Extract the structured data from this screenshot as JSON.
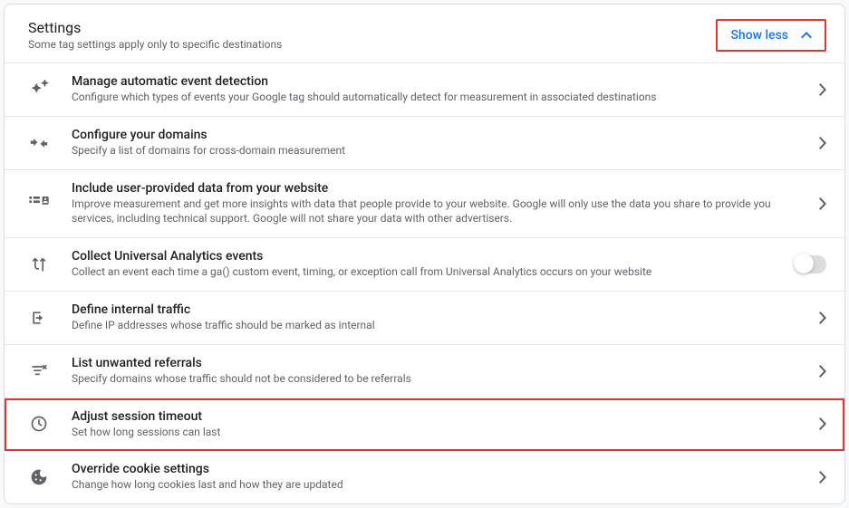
{
  "header": {
    "title": "Settings",
    "subtitle": "Some tag settings apply only to specific destinations",
    "toggle_label": "Show less"
  },
  "items": [
    {
      "icon": "sparkles",
      "title": "Manage automatic event detection",
      "desc": "Configure which types of events your Google tag should automatically detect for measurement in associated destinations",
      "action": "chevron",
      "highlight": false
    },
    {
      "icon": "merge",
      "title": "Configure your domains",
      "desc": "Specify a list of domains for cross-domain measurement",
      "action": "chevron",
      "highlight": false
    },
    {
      "icon": "badge",
      "title": "Include user-provided data from your website",
      "desc": "Improve measurement and get more insights with data that people provide to your website. Google will only use the data you share to provide you services, including technical support. Google will not share your data with other advertisers.",
      "action": "chevron",
      "highlight": false
    },
    {
      "icon": "fork",
      "title": "Collect Universal Analytics events",
      "desc": "Collect an event each time a ga() custom event, timing, or exception call from Universal Analytics occurs on your website",
      "action": "toggle",
      "highlight": false
    },
    {
      "icon": "exit",
      "title": "Define internal traffic",
      "desc": "Define IP addresses whose traffic should be marked as internal",
      "action": "chevron",
      "highlight": false
    },
    {
      "icon": "filter-off",
      "title": "List unwanted referrals",
      "desc": "Specify domains whose traffic should not be considered to be referrals",
      "action": "chevron",
      "highlight": false
    },
    {
      "icon": "clock",
      "title": "Adjust session timeout",
      "desc": "Set how long sessions can last",
      "action": "chevron",
      "highlight": true
    },
    {
      "icon": "cookie",
      "title": "Override cookie settings",
      "desc": "Change how long cookies last and how they are updated",
      "action": "chevron",
      "highlight": false
    }
  ],
  "colors": {
    "accent": "#1a73e8",
    "highlight_border": "#e3342f",
    "text_primary": "#202124",
    "text_secondary": "#5f6368",
    "border": "#e8eaed"
  }
}
